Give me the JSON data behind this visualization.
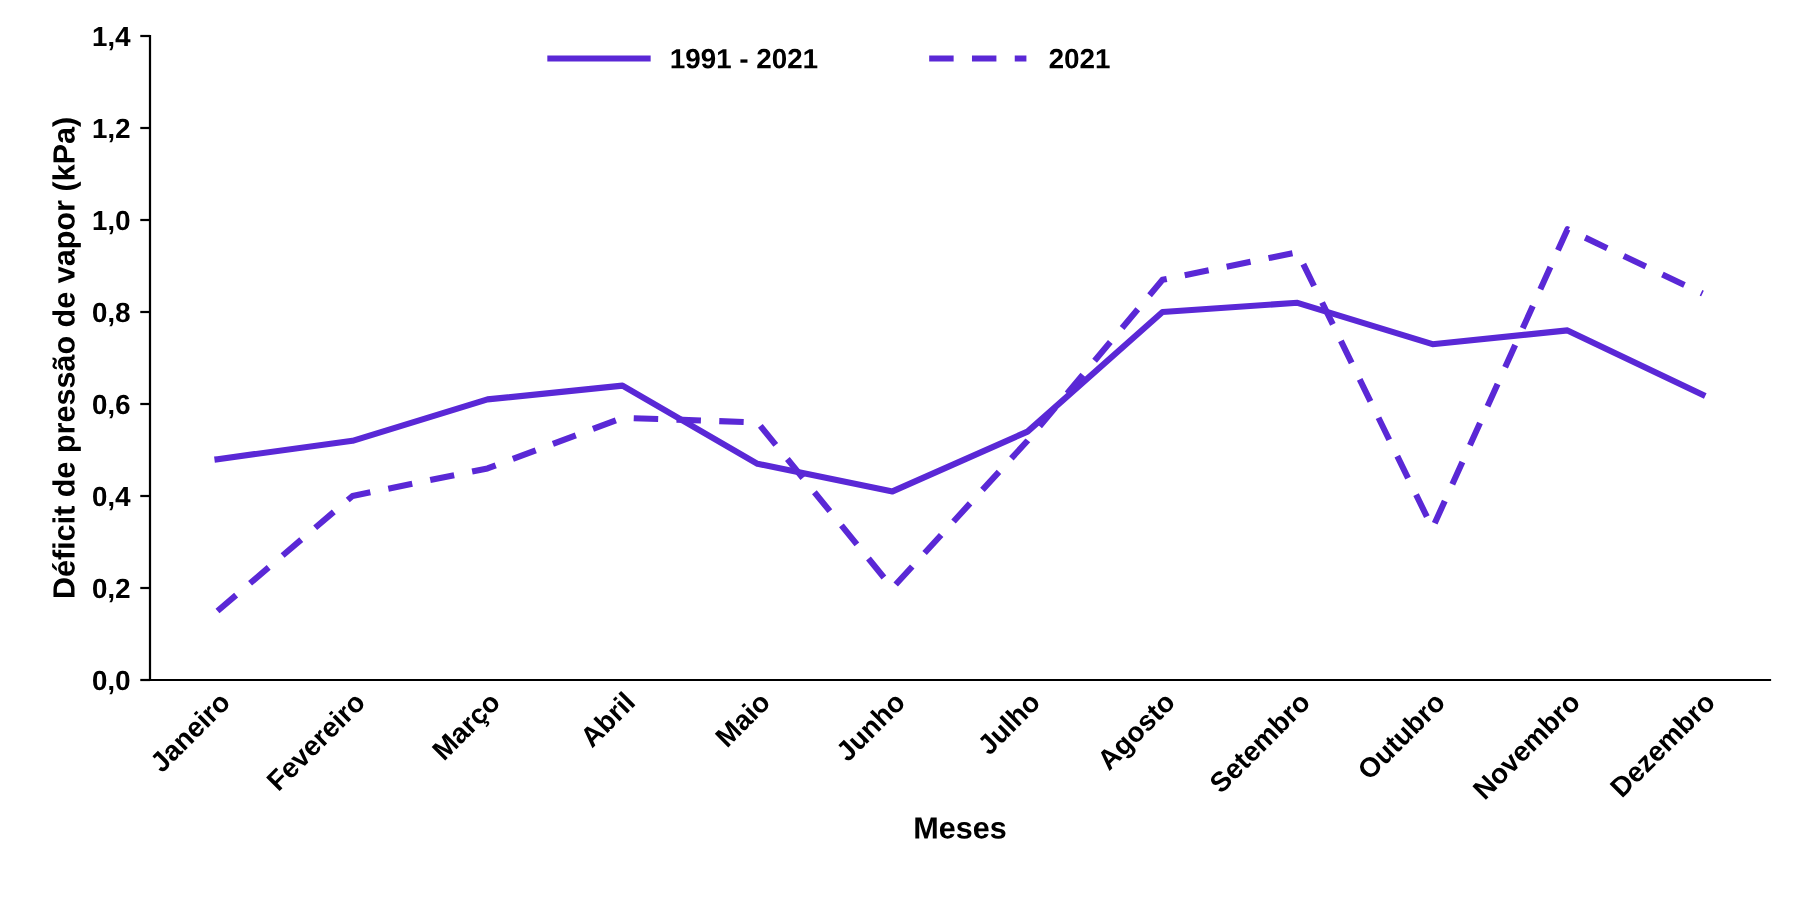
{
  "chart_data": {
    "type": "line",
    "xlabel": "Meses",
    "ylabel": "Déficit de pressão de vapor (kPa)",
    "categories": [
      "Janeiro",
      "Fevereiro",
      "Março",
      "Abril",
      "Maio",
      "Junho",
      "Julho",
      "Agosto",
      "Setembro",
      "Outubro",
      "Novembro",
      "Dezembro"
    ],
    "series": [
      {
        "name": "1991 - 2021",
        "color": "#5a28d6",
        "line_style": "solid",
        "values": [
          0.48,
          0.52,
          0.61,
          0.64,
          0.47,
          0.41,
          0.54,
          0.8,
          0.82,
          0.73,
          0.76,
          0.62
        ]
      },
      {
        "name": "2021",
        "color": "#5a28d6",
        "line_style": "dashed",
        "values": [
          0.15,
          0.4,
          0.46,
          0.57,
          0.56,
          0.2,
          0.52,
          0.87,
          0.93,
          0.33,
          0.98,
          0.84
        ]
      }
    ],
    "ylim": [
      0,
      1.4
    ],
    "yticks": [
      {
        "value": 0,
        "label": "0,0"
      },
      {
        "value": 0.2,
        "label": "0,2"
      },
      {
        "value": 0.4,
        "label": "0,4"
      },
      {
        "value": 0.6,
        "label": "0,6"
      },
      {
        "value": 0.8,
        "label": "0,8"
      },
      {
        "value": 1.0,
        "label": "1,0"
      },
      {
        "value": 1.2,
        "label": "1,2"
      },
      {
        "value": 1.4,
        "label": "1,4"
      }
    ],
    "grid": false,
    "legend": "top",
    "marker": "none"
  }
}
